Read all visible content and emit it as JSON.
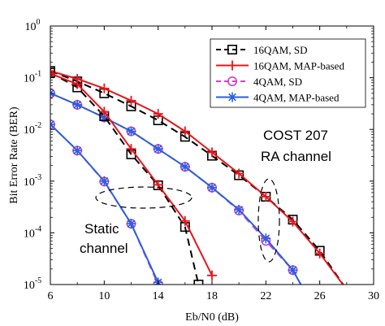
{
  "chart_data": {
    "type": "line",
    "title": "",
    "xlabel": "Eb/N0 (dB)",
    "ylabel": "Bit Error Rate (BER)",
    "xlim": [
      6,
      30
    ],
    "ylim": [
      1e-05,
      1
    ],
    "yscale": "log",
    "x_ticks": [
      "6",
      "10",
      "14",
      "18",
      "22",
      "26",
      "30"
    ],
    "y_ticks": [
      {
        "base": "10",
        "exp": "0"
      },
      {
        "base": "10",
        "exp": "-1"
      },
      {
        "base": "10",
        "exp": "-2"
      },
      {
        "base": "10",
        "exp": "-3"
      },
      {
        "base": "10",
        "exp": "-4"
      },
      {
        "base": "10",
        "exp": "-5"
      }
    ],
    "legend_position": "top-right",
    "series": [
      {
        "name": "16QAM, SD",
        "color": "#000000",
        "dash": "dashed",
        "marker": "square",
        "group": "COST 207 RA channel",
        "x": [
          6,
          8,
          10,
          12,
          14,
          16,
          18,
          20,
          22,
          24,
          26,
          28
        ],
        "y": [
          0.135,
          0.085,
          0.05,
          0.028,
          0.015,
          0.0072,
          0.0031,
          0.0013,
          0.0005,
          0.00018,
          4.5e-05,
          8e-06
        ]
      },
      {
        "name": "16QAM, MAP-based",
        "color": "#e8151b",
        "dash": "solid",
        "marker": "plus",
        "group": "COST 207 RA channel",
        "x": [
          6,
          8,
          10,
          12,
          14,
          16,
          18,
          20,
          22,
          24,
          26,
          28
        ],
        "y": [
          0.135,
          0.095,
          0.062,
          0.036,
          0.02,
          0.0092,
          0.0036,
          0.0014,
          0.0005,
          0.000165,
          4e-05,
          8e-06
        ]
      },
      {
        "name": "4QAM, SD",
        "color": "#d03fd0",
        "dash": "dashed",
        "marker": "circle",
        "group": "COST 207 RA channel",
        "x": [
          6,
          8,
          10,
          12,
          14,
          16,
          18,
          20,
          22,
          24,
          24.6
        ],
        "y": [
          0.05,
          0.03,
          0.017,
          0.0092,
          0.0042,
          0.0019,
          0.00075,
          0.00027,
          7e-05,
          1.9e-05,
          1e-05
        ]
      },
      {
        "name": "4QAM, MAP-based",
        "color": "#2c5fde",
        "dash": "solid",
        "marker": "star",
        "group": "COST 207 RA channel",
        "x": [
          6,
          8,
          10,
          12,
          14,
          16,
          18,
          20,
          22,
          24,
          24.6
        ],
        "y": [
          0.05,
          0.03,
          0.017,
          0.0092,
          0.0042,
          0.0019,
          0.00075,
          0.00028,
          7.8e-05,
          1.9e-05,
          1e-05
        ]
      },
      {
        "name": "16QAM, SD",
        "color": "#000000",
        "dash": "dashed",
        "marker": "square",
        "group": "Static channel",
        "x": [
          6,
          8,
          10,
          12,
          14,
          16,
          17
        ],
        "y": [
          0.125,
          0.065,
          0.018,
          0.0033,
          0.00083,
          0.00013,
          1e-05
        ]
      },
      {
        "name": "16QAM, MAP-based",
        "color": "#e8151b",
        "dash": "solid",
        "marker": "plus",
        "group": "Static channel",
        "x": [
          6,
          8,
          10,
          12,
          14,
          16,
          18
        ],
        "y": [
          0.12,
          0.075,
          0.022,
          0.0042,
          0.00085,
          0.00017,
          1.5e-05
        ]
      },
      {
        "name": "4QAM, SD",
        "color": "#d03fd0",
        "dash": "dashed",
        "marker": "circle",
        "group": "Static channel",
        "x": [
          6,
          8,
          10,
          12,
          14
        ],
        "y": [
          0.0125,
          0.0039,
          0.00098,
          0.00015,
          1e-05
        ]
      },
      {
        "name": "4QAM, MAP-based",
        "color": "#2c5fde",
        "dash": "solid",
        "marker": "star",
        "group": "Static channel",
        "x": [
          6,
          8,
          10,
          12,
          14
        ],
        "y": [
          0.0125,
          0.0039,
          0.001,
          0.00015,
          1.1e-05
        ]
      }
    ],
    "legend": [
      {
        "label": "16QAM, SD",
        "color": "#000000",
        "dash": "dashed",
        "marker": "square"
      },
      {
        "label": "16QAM, MAP-based",
        "color": "#e8151b",
        "dash": "solid",
        "marker": "plus"
      },
      {
        "label": "4QAM, SD",
        "color": "#d03fd0",
        "dash": "dashed",
        "marker": "circle"
      },
      {
        "label": "4QAM, MAP-based",
        "color": "#2c5fde",
        "dash": "solid",
        "marker": "star"
      }
    ],
    "annotations": {
      "cost_line1": "COST 207",
      "cost_line2": "RA channel",
      "static_line1": "Static",
      "static_line2": "channel"
    }
  }
}
